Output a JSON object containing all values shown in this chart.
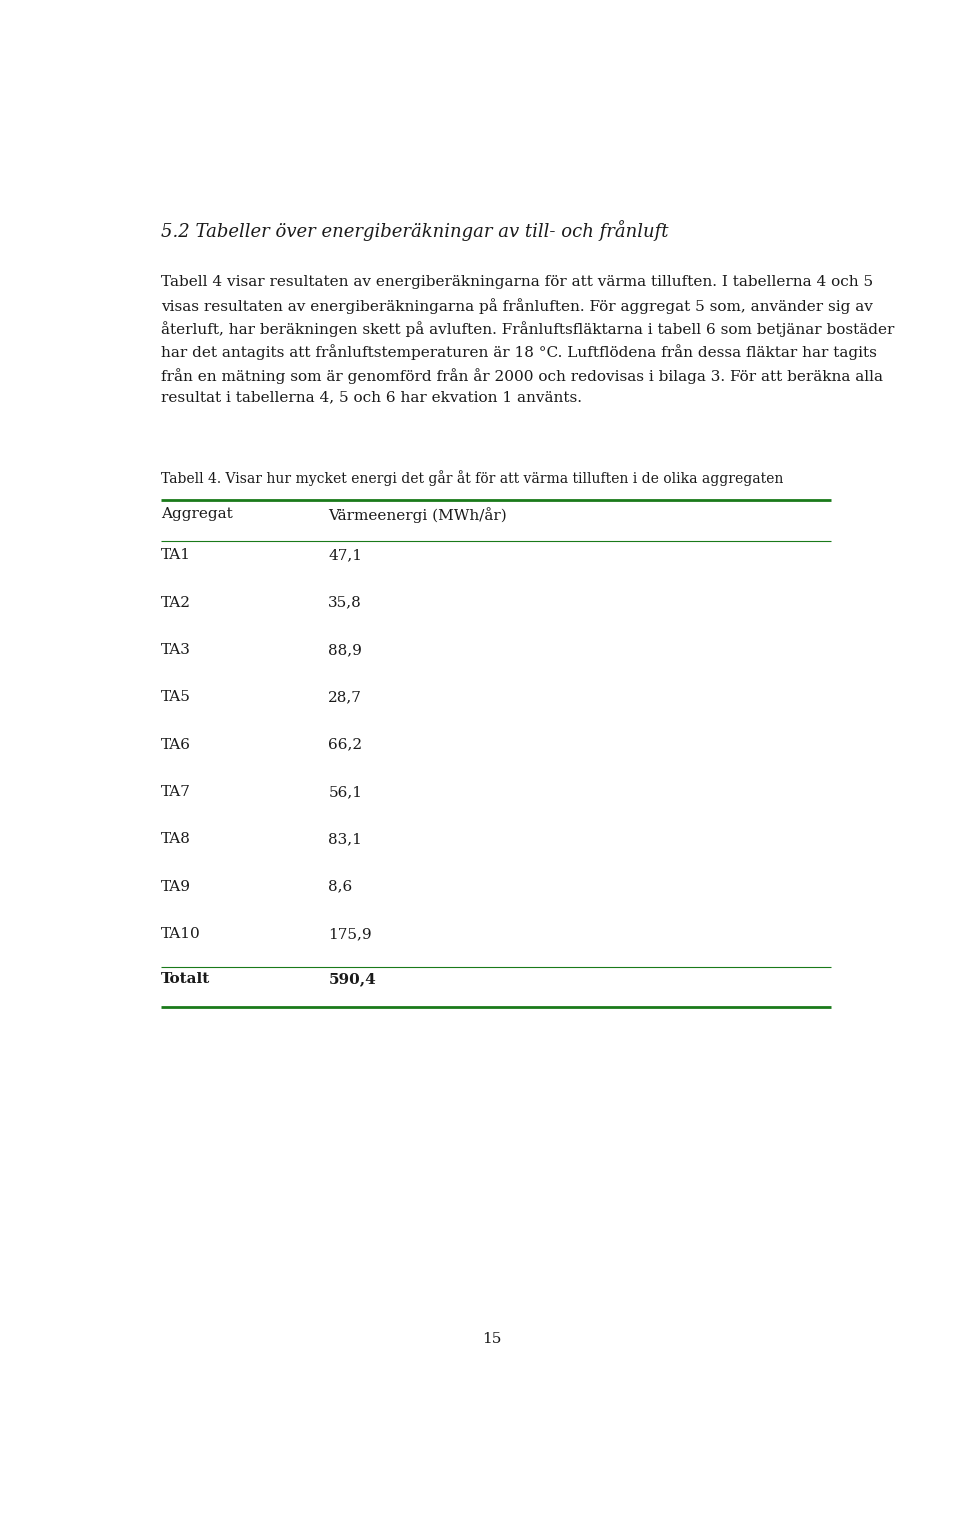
{
  "page_title": "5.2 Tabeller över energiberäkningar av till- och frånluft",
  "body_text": [
    "Tabell 4 visar resultaten av energiberäkningarna för att värma tilluften. I tabellerna 4 och 5",
    "visas resultaten av energiberäkningarna på frånluften. För aggregat 5 som, använder sig av",
    "återluft, har beräkningen skett på avluften. Frånluftsfläktarna i tabell 6 som betjänar bostäder",
    "har det antagits att frånluftstemperaturen är 18 °C. Luftflödena från dessa fläktar har tagits",
    "från en mätning som är genomförd från år 2000 och redovisas i bilaga 3. För att beräkna alla",
    "resultat i tabellerna 4, 5 och 6 har ekvation 1 använts."
  ],
  "table_caption": "Tabell 4. Visar hur mycket energi det går åt för att värma tilluften i de olika aggregaten",
  "col_headers": [
    "Aggregat",
    "Värmeenergi (MWh/år)"
  ],
  "rows": [
    [
      "TA1",
      "47,1"
    ],
    [
      "TA2",
      "35,8"
    ],
    [
      "TA3",
      "88,9"
    ],
    [
      "TA5",
      "28,7"
    ],
    [
      "TA6",
      "66,2"
    ],
    [
      "TA7",
      "56,1"
    ],
    [
      "TA8",
      "83,1"
    ],
    [
      "TA9",
      "8,6"
    ],
    [
      "TA10",
      "175,9"
    ]
  ],
  "total_row": [
    "Totalt",
    "590,4"
  ],
  "page_number": "15",
  "line_color": "#1a7a1a",
  "background_color": "#ffffff",
  "text_color": "#1a1a1a",
  "title_font_size": 13,
  "body_font_size": 11,
  "caption_font_size": 10,
  "table_font_size": 11
}
